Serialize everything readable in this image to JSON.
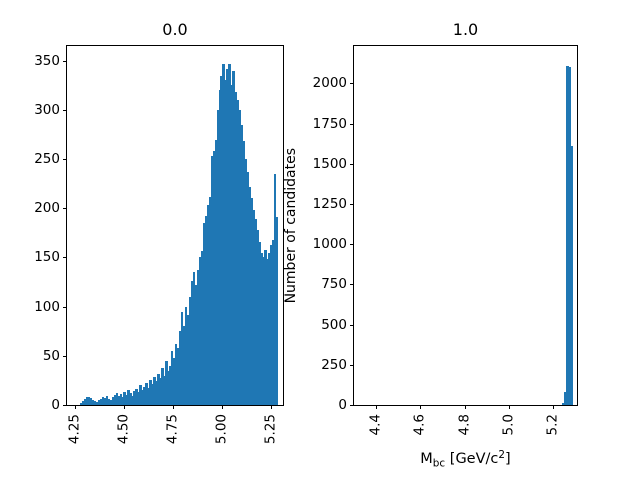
{
  "figure": {
    "background": "#ffffff",
    "bar_color": "#1f77b4",
    "text_color": "#000000"
  },
  "chart_data": [
    {
      "type": "bar",
      "title": "0.0",
      "xlabel": "",
      "ylabel": "",
      "legend": "none",
      "grid": false,
      "xlim": [
        4.209,
        5.311
      ],
      "ylim": [
        0,
        365
      ],
      "tick_rotation": 90,
      "xticks": [
        {
          "value": 4.25,
          "label": "4.25"
        },
        {
          "value": 4.5,
          "label": "4.50"
        },
        {
          "value": 4.75,
          "label": "4.75"
        },
        {
          "value": 5.0,
          "label": "5.00"
        },
        {
          "value": 5.25,
          "label": "5.25"
        }
      ],
      "yticks": [
        {
          "value": 0,
          "label": "0"
        },
        {
          "value": 50,
          "label": "50"
        },
        {
          "value": 100,
          "label": "100"
        },
        {
          "value": 150,
          "label": "150"
        },
        {
          "value": 200,
          "label": "200"
        },
        {
          "value": 250,
          "label": "250"
        },
        {
          "value": 300,
          "label": "300"
        },
        {
          "value": 350,
          "label": "350"
        }
      ],
      "histogram": {
        "bin_start": 4.275,
        "bin_width": 0.0101,
        "counts": [
          2,
          4,
          6,
          8,
          8,
          7,
          5,
          4,
          3,
          5,
          6,
          8,
          7,
          9,
          6,
          5,
          8,
          10,
          12,
          9,
          11,
          8,
          13,
          10,
          15,
          12,
          9,
          14,
          16,
          13,
          20,
          15,
          18,
          22,
          17,
          25,
          21,
          28,
          24,
          32,
          27,
          38,
          30,
          45,
          35,
          40,
          55,
          48,
          62,
          58,
          75,
          95,
          80,
          100,
          92,
          110,
          126,
          135,
          122,
          137,
          150,
          157,
          185,
          192,
          203,
          211,
          253,
          258,
          269,
          300,
          320,
          335,
          347,
          330,
          342,
          347,
          325,
          340,
          318,
          310,
          300,
          285,
          268,
          250,
          237,
          222,
          210,
          198,
          189,
          178,
          166,
          155,
          150,
          158,
          148,
          155,
          163,
          168,
          235,
          191
        ]
      }
    },
    {
      "type": "bar",
      "title": "1.0",
      "xlabel": {
        "pre": "M",
        "sub": "bc",
        "mid": " [GeV/c",
        "sup": "2",
        "post": "]"
      },
      "ylabel": "Number of candidates",
      "legend": "none",
      "grid": false,
      "xlim": [
        4.299,
        5.31
      ],
      "ylim": [
        0,
        2233
      ],
      "tick_rotation": 90,
      "xticks": [
        {
          "value": 4.4,
          "label": "4.4"
        },
        {
          "value": 4.6,
          "label": "4.6"
        },
        {
          "value": 4.8,
          "label": "4.8"
        },
        {
          "value": 5.0,
          "label": "5.0"
        },
        {
          "value": 5.2,
          "label": "5.2"
        }
      ],
      "yticks": [
        {
          "value": 0,
          "label": "0"
        },
        {
          "value": 250,
          "label": "250"
        },
        {
          "value": 500,
          "label": "500"
        },
        {
          "value": 750,
          "label": "750"
        },
        {
          "value": 1000,
          "label": "1000"
        },
        {
          "value": 1250,
          "label": "1250"
        },
        {
          "value": 1500,
          "label": "1500"
        },
        {
          "value": 1750,
          "label": "1750"
        },
        {
          "value": 2000,
          "label": "2000"
        }
      ],
      "histogram": {
        "bin_start": 5.243,
        "bin_width": 0.0095,
        "counts": [
          15,
          80,
          2110,
          2100,
          1610
        ]
      }
    }
  ]
}
